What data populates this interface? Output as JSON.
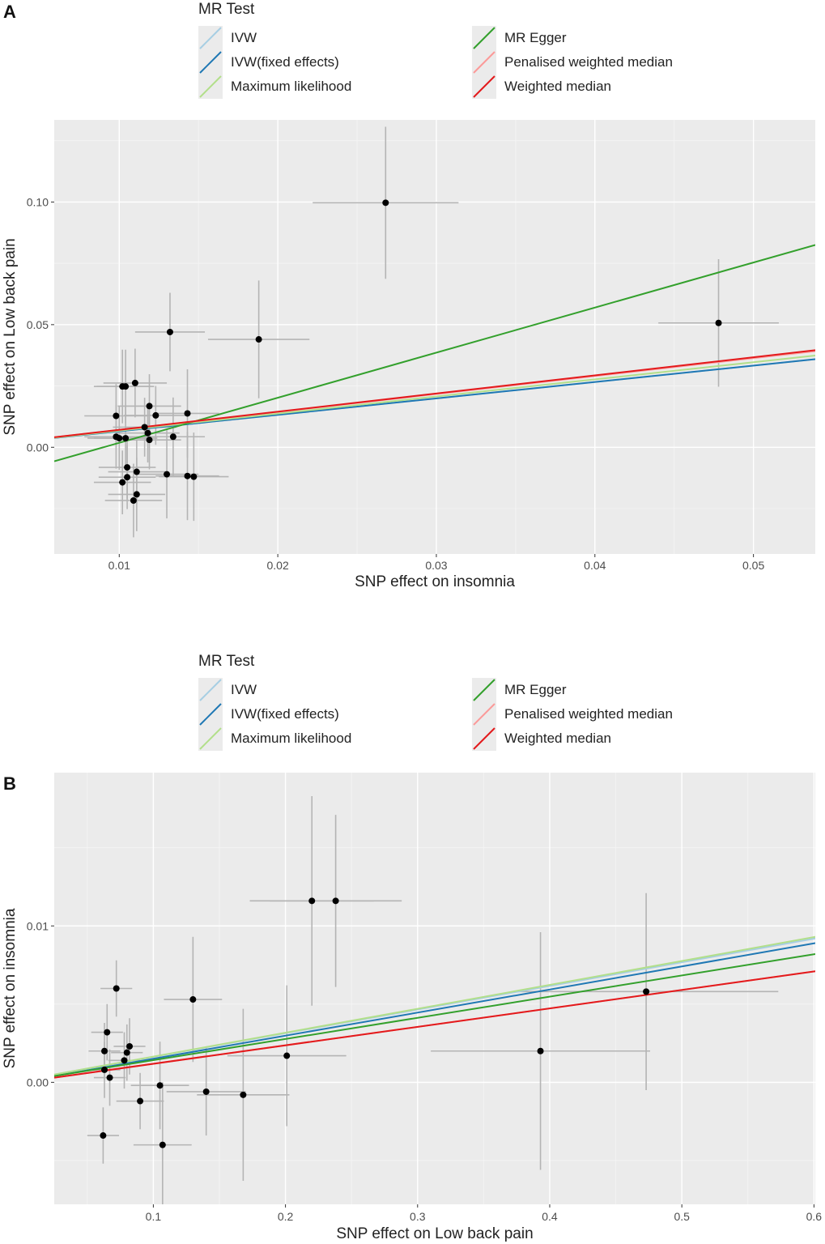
{
  "legend": {
    "title": "MR Test",
    "items": [
      {
        "label": "IVW",
        "color": "#a6cee3"
      },
      {
        "label": "IVW(fixed effects)",
        "color": "#1f78b4"
      },
      {
        "label": "Maximum likelihood",
        "color": "#b2df8a"
      },
      {
        "label": "MR Egger",
        "color": "#33a02c"
      },
      {
        "label": "Penalised weighted median",
        "color": "#fb9a99"
      },
      {
        "label": "Weighted median",
        "color": "#e31a1c"
      }
    ]
  },
  "chart_data": [
    {
      "panel": "A",
      "type": "scatter",
      "xlabel": "SNP effect on insomnia",
      "ylabel": "SNP effect on Low back pain",
      "xlim": [
        0.0059,
        0.0539
      ],
      "ylim": [
        -0.0435,
        0.1335
      ],
      "xticks": [
        0.01,
        0.02,
        0.03,
        0.04,
        0.05
      ],
      "xtick_labels": [
        "0.01",
        "0.02",
        "0.03",
        "0.04",
        "0.05"
      ],
      "yticks": [
        0.0,
        0.05,
        0.1
      ],
      "ytick_labels": [
        "0.00",
        "0.05",
        "0.10"
      ],
      "grid": true,
      "legend_position": "top",
      "points": [
        {
          "x": 0.0268,
          "y": 0.0997,
          "xerr": 0.0046,
          "yerr": 0.031
        },
        {
          "x": 0.0478,
          "y": 0.0507,
          "xerr": 0.0038,
          "yerr": 0.026
        },
        {
          "x": 0.0188,
          "y": 0.044,
          "xerr": 0.0032,
          "yerr": 0.024
        },
        {
          "x": 0.0132,
          "y": 0.047,
          "xerr": 0.0022,
          "yerr": 0.016
        },
        {
          "x": 0.011,
          "y": 0.0262,
          "xerr": 0.002,
          "yerr": 0.014
        },
        {
          "x": 0.0102,
          "y": 0.0248,
          "xerr": 0.0018,
          "yerr": 0.015
        },
        {
          "x": 0.0104,
          "y": 0.0248,
          "xerr": 0.0018,
          "yerr": 0.015
        },
        {
          "x": 0.0119,
          "y": 0.0168,
          "xerr": 0.002,
          "yerr": 0.013
        },
        {
          "x": 0.0098,
          "y": 0.0128,
          "xerr": 0.002,
          "yerr": 0.013
        },
        {
          "x": 0.0123,
          "y": 0.013,
          "xerr": 0.002,
          "yerr": 0.012
        },
        {
          "x": 0.0143,
          "y": 0.0138,
          "xerr": 0.002,
          "yerr": 0.018
        },
        {
          "x": 0.0116,
          "y": 0.0082,
          "xerr": 0.002,
          "yerr": 0.012
        },
        {
          "x": 0.0118,
          "y": 0.0058,
          "xerr": 0.002,
          "yerr": 0.012
        },
        {
          "x": 0.0098,
          "y": 0.0043,
          "xerr": 0.002,
          "yerr": 0.013
        },
        {
          "x": 0.01,
          "y": 0.0037,
          "xerr": 0.002,
          "yerr": 0.013
        },
        {
          "x": 0.0104,
          "y": 0.0037,
          "xerr": 0.002,
          "yerr": 0.013
        },
        {
          "x": 0.0119,
          "y": 0.003,
          "xerr": 0.002,
          "yerr": 0.012
        },
        {
          "x": 0.0134,
          "y": 0.0043,
          "xerr": 0.002,
          "yerr": 0.016
        },
        {
          "x": 0.0105,
          "y": -0.0082,
          "xerr": 0.0018,
          "yerr": 0.013
        },
        {
          "x": 0.0111,
          "y": -0.01,
          "xerr": 0.0018,
          "yerr": 0.013
        },
        {
          "x": 0.013,
          "y": -0.011,
          "xerr": 0.002,
          "yerr": 0.018
        },
        {
          "x": 0.0143,
          "y": -0.0117,
          "xerr": 0.002,
          "yerr": 0.018
        },
        {
          "x": 0.0147,
          "y": -0.012,
          "xerr": 0.0022,
          "yerr": 0.018
        },
        {
          "x": 0.0105,
          "y": -0.0122,
          "xerr": 0.0018,
          "yerr": 0.013
        },
        {
          "x": 0.0102,
          "y": -0.0143,
          "xerr": 0.0018,
          "yerr": 0.013
        },
        {
          "x": 0.0111,
          "y": -0.0192,
          "xerr": 0.0018,
          "yerr": 0.015
        },
        {
          "x": 0.0109,
          "y": -0.0217,
          "xerr": 0.0018,
          "yerr": 0.015
        }
      ],
      "lines": [
        {
          "method": "IVW",
          "y_at_xmin": 0.0038,
          "y_at_xmax": 0.0359
        },
        {
          "method": "IVW(fixed effects)",
          "y_at_xmin": 0.0038,
          "y_at_xmax": 0.0359
        },
        {
          "method": "Maximum likelihood",
          "y_at_xmin": 0.0039,
          "y_at_xmax": 0.0374
        },
        {
          "method": "MR Egger",
          "y_at_xmin": -0.0057,
          "y_at_xmax": 0.0825
        },
        {
          "method": "Penalised weighted median",
          "y_at_xmin": 0.0041,
          "y_at_xmax": 0.0392
        },
        {
          "method": "Weighted median",
          "y_at_xmin": 0.0041,
          "y_at_xmax": 0.0396
        }
      ]
    },
    {
      "panel": "B",
      "type": "scatter",
      "xlabel": "SNP effect on Low back pain",
      "ylabel": "SNP effect on insomnia",
      "xlim": [
        0.025,
        0.601
      ],
      "ylim": [
        -0.0078,
        0.0198
      ],
      "xticks": [
        0.1,
        0.2,
        0.3,
        0.4,
        0.5,
        0.6
      ],
      "xtick_labels": [
        "0.1",
        "0.2",
        "0.3",
        "0.4",
        "0.5",
        "0.6"
      ],
      "yticks": [
        0.0,
        0.01
      ],
      "ytick_labels": [
        "0.00",
        "0.01"
      ],
      "grid": true,
      "legend_position": "top",
      "points": [
        {
          "x": 0.473,
          "y": 0.0058,
          "xerr": 0.1,
          "yerr": 0.0063
        },
        {
          "x": 0.393,
          "y": 0.002,
          "xerr": 0.083,
          "yerr": 0.0076
        },
        {
          "x": 0.238,
          "y": 0.0116,
          "xerr": 0.05,
          "yerr": 0.0055
        },
        {
          "x": 0.22,
          "y": 0.0116,
          "xerr": 0.047,
          "yerr": 0.0067
        },
        {
          "x": 0.201,
          "y": 0.0017,
          "xerr": 0.045,
          "yerr": 0.0045
        },
        {
          "x": 0.168,
          "y": -0.0008,
          "xerr": 0.035,
          "yerr": 0.0055
        },
        {
          "x": 0.14,
          "y": -0.0006,
          "xerr": 0.03,
          "yerr": 0.0028
        },
        {
          "x": 0.13,
          "y": 0.0053,
          "xerr": 0.022,
          "yerr": 0.004
        },
        {
          "x": 0.107,
          "y": -0.004,
          "xerr": 0.022,
          "yerr": 0.004
        },
        {
          "x": 0.105,
          "y": -0.0002,
          "xerr": 0.022,
          "yerr": 0.0028
        },
        {
          "x": 0.09,
          "y": -0.0012,
          "xerr": 0.018,
          "yerr": 0.0018
        },
        {
          "x": 0.072,
          "y": 0.006,
          "xerr": 0.012,
          "yerr": 0.0018
        },
        {
          "x": 0.065,
          "y": 0.0032,
          "xerr": 0.012,
          "yerr": 0.0018
        },
        {
          "x": 0.063,
          "y": 0.002,
          "xerr": 0.012,
          "yerr": 0.0018
        },
        {
          "x": 0.082,
          "y": 0.0023,
          "xerr": 0.012,
          "yerr": 0.0018
        },
        {
          "x": 0.08,
          "y": 0.0019,
          "xerr": 0.012,
          "yerr": 0.0018
        },
        {
          "x": 0.078,
          "y": 0.0014,
          "xerr": 0.012,
          "yerr": 0.0018
        },
        {
          "x": 0.063,
          "y": 0.0008,
          "xerr": 0.012,
          "yerr": 0.0018
        },
        {
          "x": 0.067,
          "y": 0.0003,
          "xerr": 0.012,
          "yerr": 0.0018
        },
        {
          "x": 0.062,
          "y": -0.0034,
          "xerr": 0.012,
          "yerr": 0.0018
        }
      ],
      "lines": [
        {
          "method": "IVW",
          "y_at_xmin": 0.0005,
          "y_at_xmax": 0.0092
        },
        {
          "method": "IVW(fixed effects)",
          "y_at_xmin": 0.0004,
          "y_at_xmax": 0.0089
        },
        {
          "method": "Maximum likelihood",
          "y_at_xmin": 0.0005,
          "y_at_xmax": 0.0093
        },
        {
          "method": "MR Egger",
          "y_at_xmin": 0.0004,
          "y_at_xmax": 0.0082
        },
        {
          "method": "Penalised weighted median",
          "y_at_xmin": 0.0003,
          "y_at_xmax": 0.0071
        },
        {
          "method": "Weighted median",
          "y_at_xmin": 0.0003,
          "y_at_xmax": 0.0071
        }
      ]
    }
  ]
}
